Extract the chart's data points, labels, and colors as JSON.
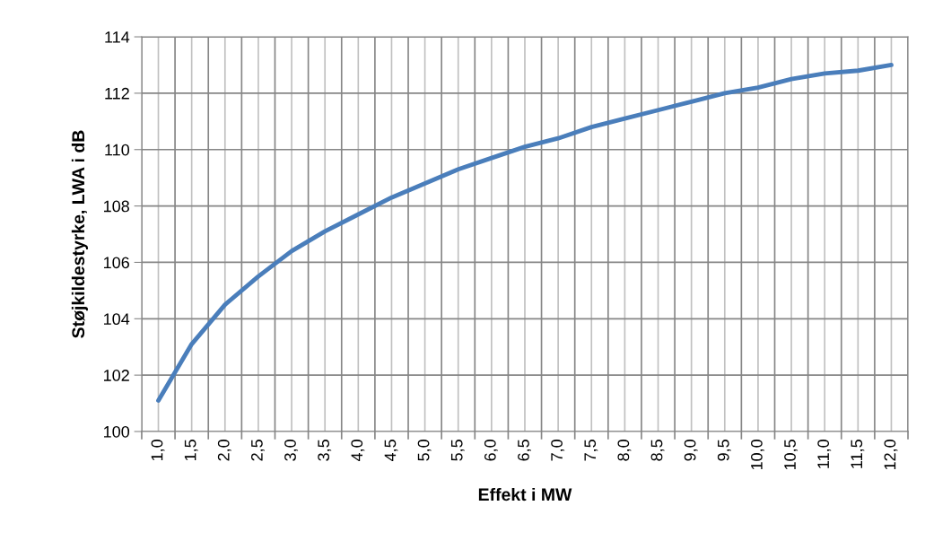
{
  "chart_data": {
    "type": "line",
    "xlabel": "Effekt i MW",
    "ylabel": "Støjkildestyrke, LWA i dB",
    "categories": [
      "1,0",
      "1,5",
      "2,0",
      "2,5",
      "3,0",
      "3,5",
      "4,0",
      "4,5",
      "5,0",
      "5,5",
      "6,0",
      "6,5",
      "7,0",
      "7,5",
      "8,0",
      "8,5",
      "9,0",
      "9,5",
      "10,0",
      "10,5",
      "11,0",
      "11,5",
      "12,0"
    ],
    "series": [
      {
        "color": "#4a7ebb",
        "values": [
          101.1,
          103.1,
          104.5,
          105.5,
          106.4,
          107.1,
          107.7,
          108.3,
          108.8,
          109.3,
          109.7,
          110.1,
          110.4,
          110.8,
          111.1,
          111.4,
          111.7,
          112.0,
          112.2,
          112.5,
          112.7,
          112.8,
          113.0
        ]
      }
    ],
    "ylim": [
      100,
      114
    ],
    "yticks": [
      100,
      102,
      104,
      106,
      108,
      110,
      112,
      114
    ],
    "grid": true,
    "marker": "none",
    "line_style": "solid"
  }
}
